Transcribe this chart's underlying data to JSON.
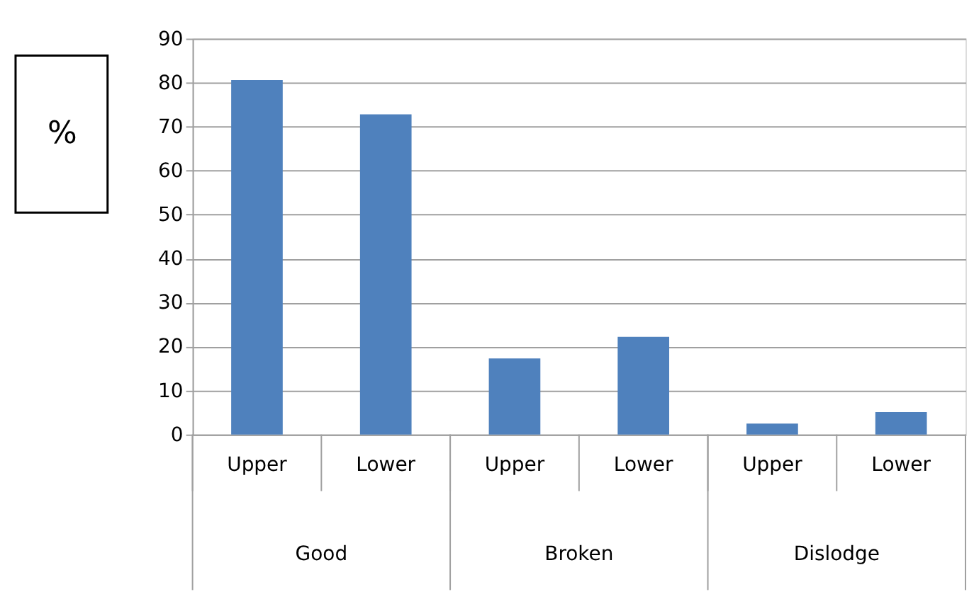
{
  "chart_data": {
    "type": "bar",
    "ylabel": "%",
    "categories": [
      "Upper",
      "Lower",
      "Upper",
      "Lower",
      "Upper",
      "Lower"
    ],
    "values": [
      80.6,
      72.8,
      17.3,
      22.2,
      2.5,
      5.1
    ],
    "color": "#4f81bd",
    "annotations": [
      "Good",
      "Broken",
      "Dislodge"
    ],
    "ylim": [
      0,
      90
    ],
    "yticks": [
      0,
      10,
      20,
      30,
      40,
      50,
      60,
      70,
      80,
      90
    ],
    "grid": "y"
  }
}
